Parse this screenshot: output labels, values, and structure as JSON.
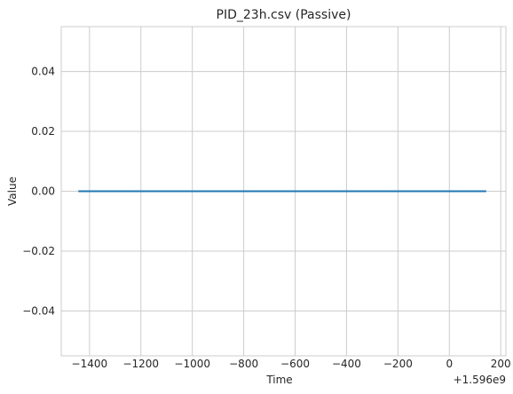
{
  "chart_data": {
    "type": "line",
    "title": "PID_23h.csv (Passive)",
    "xlabel": "Time",
    "ylabel": "Value",
    "x_offset_label": "+1.596e9",
    "xlim": [
      -1510,
      220
    ],
    "ylim": [
      -0.055,
      0.055
    ],
    "xticks": [
      -1400,
      -1200,
      -1000,
      -800,
      -600,
      -400,
      -200,
      0,
      200
    ],
    "xtick_labels": [
      "−1400",
      "−1200",
      "−1000",
      "−800",
      "−600",
      "−400",
      "−200",
      "0",
      "200"
    ],
    "yticks": [
      0.04,
      0.02,
      0.0,
      -0.02,
      -0.04
    ],
    "ytick_labels": [
      "0.04",
      "0.02",
      "0.00",
      "−0.02",
      "−0.04"
    ],
    "grid": true,
    "series": [
      {
        "x": [
          -1440,
          140
        ],
        "values": [
          0,
          0
        ],
        "color": "#1f77b4"
      }
    ]
  }
}
